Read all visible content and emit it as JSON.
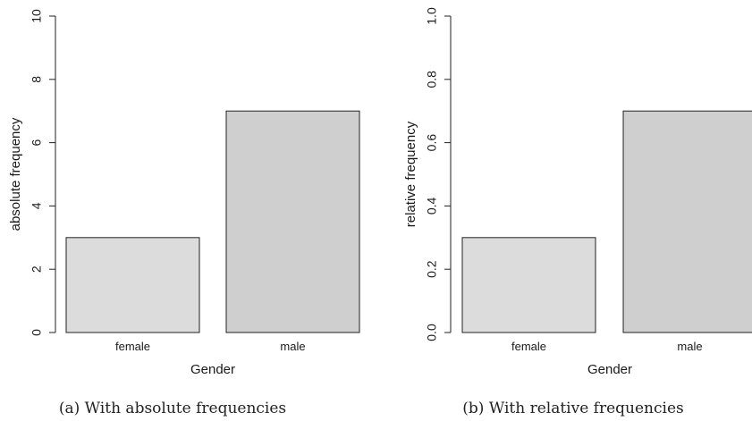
{
  "chart_data": [
    {
      "type": "bar",
      "caption": "(a) With absolute frequencies",
      "categories": [
        "female",
        "male"
      ],
      "values": [
        3,
        7
      ],
      "xlabel": "Gender",
      "ylabel": "absolute frequency",
      "ylim": [
        0,
        10
      ],
      "yticks": [
        "0",
        "2",
        "4",
        "6",
        "8",
        "10"
      ],
      "ytick_values": [
        0,
        2,
        4,
        6,
        8,
        10
      ],
      "bar_colors": [
        "#dcdcdc",
        "#cfcfcf"
      ],
      "grid": false
    },
    {
      "type": "bar",
      "caption": "(b) With relative frequencies",
      "categories": [
        "female",
        "male"
      ],
      "values": [
        0.3,
        0.7
      ],
      "xlabel": "Gender",
      "ylabel": "relative frequency",
      "ylim": [
        0,
        1.0
      ],
      "yticks": [
        "0.0",
        "0.2",
        "0.4",
        "0.6",
        "0.8",
        "1.0"
      ],
      "ytick_values": [
        0,
        0.2,
        0.4,
        0.6,
        0.8,
        1.0
      ],
      "bar_colors": [
        "#dcdcdc",
        "#cfcfcf"
      ],
      "grid": false
    }
  ]
}
